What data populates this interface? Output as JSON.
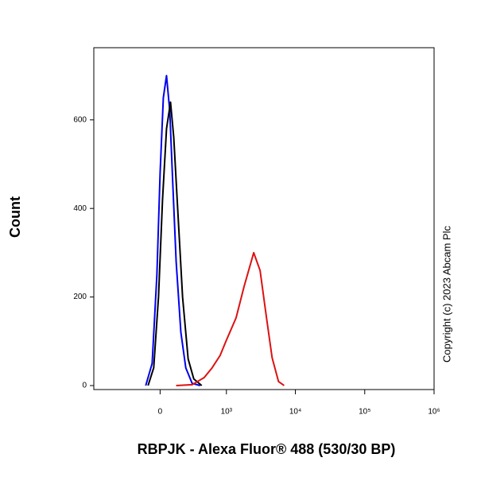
{
  "chart_data": {
    "type": "line",
    "y_label": "Count",
    "x_label": "RBPJK - Alexa Fluor® 488 (530/30 BP)",
    "annotation": "Copyright (c) 2023 Abcam Plc",
    "xscale": "biexponential",
    "xlim": [
      -1000,
      1000000
    ],
    "xticks": [
      0,
      {
        "value": 1000,
        "label": "10³"
      },
      {
        "value": 10000,
        "label": "10⁴"
      },
      {
        "value": 100000,
        "label": "10⁵"
      },
      {
        "value": 1000000,
        "label": "10⁶"
      }
    ],
    "ylim": [
      -9,
      763
    ],
    "yticks": [
      0,
      200,
      400,
      600
    ],
    "series": [
      {
        "color": "#0000ee",
        "x": [
          -111,
          -60,
          -24,
          0,
          24,
          48,
          73,
          98,
          125,
          167,
          215,
          286,
          393
        ],
        "values": [
          0,
          50,
          250,
          480,
          650,
          700,
          620,
          450,
          280,
          120,
          40,
          5,
          0
        ]
      },
      {
        "color": "#000000",
        "x": [
          -92,
          -48,
          -12,
          18,
          48,
          79,
          105,
          138,
          183,
          240,
          306,
          418
        ],
        "values": [
          0,
          40,
          200,
          420,
          580,
          640,
          560,
          400,
          200,
          60,
          15,
          0
        ]
      },
      {
        "color": "#dd1111",
        "x": [
          125,
          286,
          457,
          609,
          806,
          977,
          1387,
          1815,
          2502,
          3091,
          3830,
          4614,
          5712,
          6877
        ],
        "values": [
          0,
          2,
          18,
          40,
          68,
          99,
          153,
          224,
          300,
          260,
          153,
          63,
          9,
          0
        ]
      }
    ]
  }
}
